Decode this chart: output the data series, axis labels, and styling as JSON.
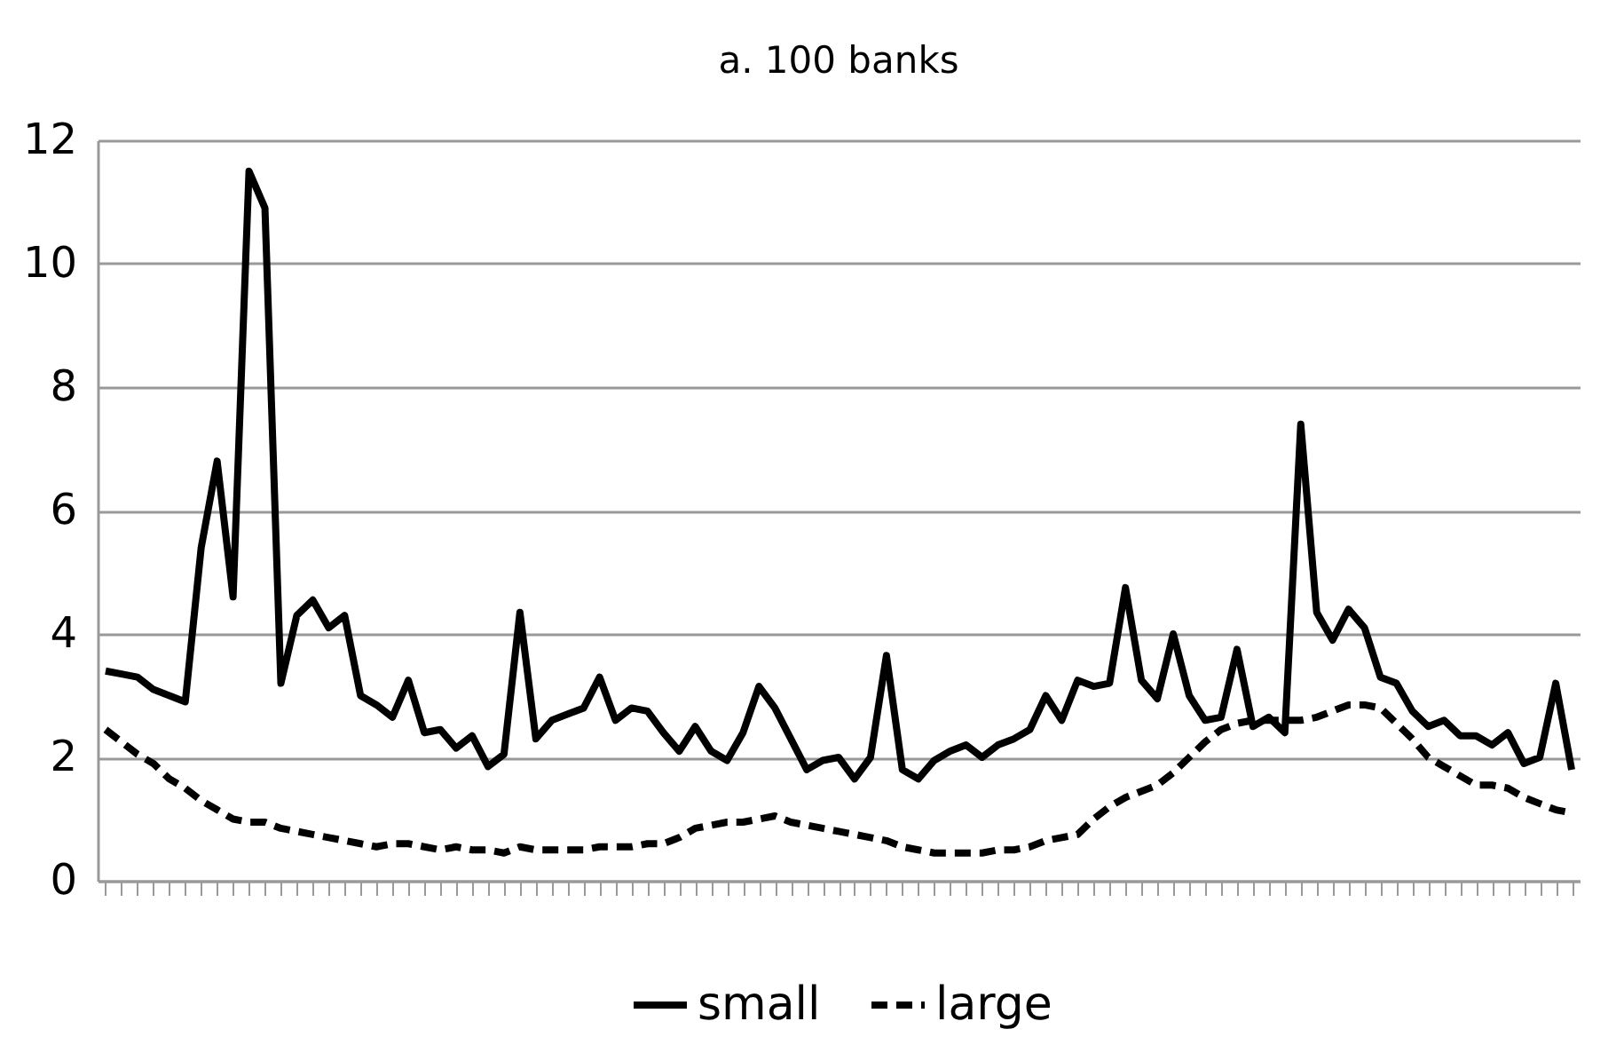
{
  "chart_data": {
    "type": "line",
    "title": "a. 100 banks",
    "categories": [
      null,
      null,
      null,
      null,
      null,
      null,
      null,
      null,
      null,
      null,
      null,
      null,
      null,
      null,
      null,
      null,
      null,
      null,
      null,
      null,
      null,
      null,
      null,
      null,
      null,
      null,
      null,
      null,
      null,
      null,
      null,
      null,
      null,
      null,
      null,
      null,
      null,
      null,
      null,
      null,
      null,
      null,
      null,
      null,
      null,
      null,
      null,
      null,
      null,
      null,
      null,
      null,
      null,
      null,
      null,
      null,
      null,
      null,
      null,
      null,
      null,
      null,
      null,
      null,
      null,
      null,
      null,
      null,
      null,
      null,
      null,
      null,
      null,
      null,
      null,
      null,
      null,
      null,
      null,
      null,
      null,
      null,
      null,
      null,
      null,
      null,
      null,
      null,
      null,
      null,
      null,
      null,
      null
    ],
    "series": [
      {
        "name": "small",
        "color": "#000000",
        "line_style": "solid",
        "values": [
          3.4,
          3.35,
          3.3,
          3.1,
          3.0,
          2.9,
          5.4,
          6.8,
          4.6,
          11.5,
          10.9,
          3.2,
          4.3,
          4.55,
          4.1,
          4.3,
          3.0,
          2.85,
          2.65,
          3.25,
          2.4,
          2.45,
          2.15,
          2.35,
          1.85,
          2.05,
          4.35,
          2.3,
          2.6,
          2.7,
          2.8,
          3.3,
          2.6,
          2.8,
          2.75,
          2.4,
          2.1,
          2.5,
          2.1,
          1.95,
          2.4,
          3.15,
          2.8,
          2.3,
          1.8,
          1.95,
          2.0,
          1.65,
          2.0,
          3.65,
          1.8,
          1.65,
          1.95,
          2.1,
          2.2,
          2.0,
          2.2,
          2.3,
          2.45,
          3.0,
          2.6,
          3.25,
          3.15,
          3.2,
          4.75,
          3.25,
          2.95,
          4.0,
          3.0,
          2.6,
          2.65,
          3.75,
          2.5,
          2.65,
          2.4,
          7.4,
          4.35,
          3.9,
          4.4,
          4.1,
          3.3,
          3.2,
          2.75,
          2.5,
          2.6,
          2.35,
          2.35,
          2.2,
          2.4,
          1.9,
          2.0,
          3.2,
          1.8
        ]
      },
      {
        "name": "large",
        "color": "#000000",
        "line_style": "dashed",
        "values": [
          2.45,
          2.25,
          2.05,
          1.9,
          1.65,
          1.5,
          1.3,
          1.15,
          1.0,
          0.95,
          0.95,
          0.85,
          0.8,
          0.75,
          0.7,
          0.65,
          0.6,
          0.55,
          0.6,
          0.6,
          0.55,
          0.5,
          0.55,
          0.5,
          0.5,
          0.45,
          0.55,
          0.5,
          0.5,
          0.5,
          0.5,
          0.55,
          0.55,
          0.55,
          0.6,
          0.6,
          0.7,
          0.85,
          0.9,
          0.95,
          0.95,
          1.0,
          1.05,
          0.95,
          0.9,
          0.85,
          0.8,
          0.75,
          0.7,
          0.65,
          0.55,
          0.5,
          0.45,
          0.45,
          0.45,
          0.45,
          0.5,
          0.5,
          0.55,
          0.65,
          0.7,
          0.75,
          1.0,
          1.2,
          1.35,
          1.45,
          1.55,
          1.75,
          2.0,
          2.25,
          2.45,
          2.55,
          2.6,
          2.6,
          2.6,
          2.6,
          2.65,
          2.75,
          2.85,
          2.85,
          2.8,
          2.55,
          2.3,
          2.0,
          1.85,
          1.7,
          1.55,
          1.55,
          1.5,
          1.35,
          1.25,
          1.15,
          1.1
        ]
      }
    ],
    "ylim": [
      0,
      12
    ],
    "yticks": [
      0,
      2,
      4,
      6,
      8,
      10,
      12
    ],
    "grid": "y",
    "legend": "bottom",
    "marker": "none"
  }
}
